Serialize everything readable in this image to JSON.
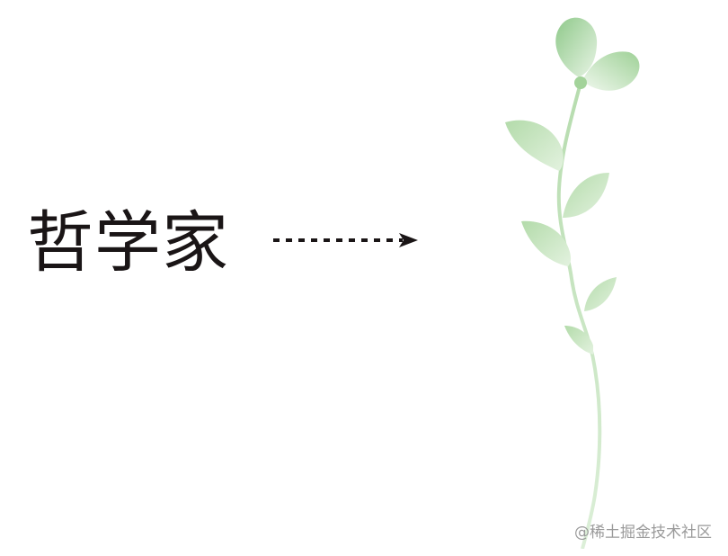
{
  "main": {
    "word": "哲学家"
  },
  "arrow": {
    "style": "dotted",
    "direction": "right",
    "color": "#1a1516"
  },
  "illustration": {
    "icon": "plant-sprout-icon",
    "leaf_color": "#a9d6a0",
    "stem_color": "#bfe0b8"
  },
  "watermark": {
    "text": "@稀土掘金技术社区"
  }
}
